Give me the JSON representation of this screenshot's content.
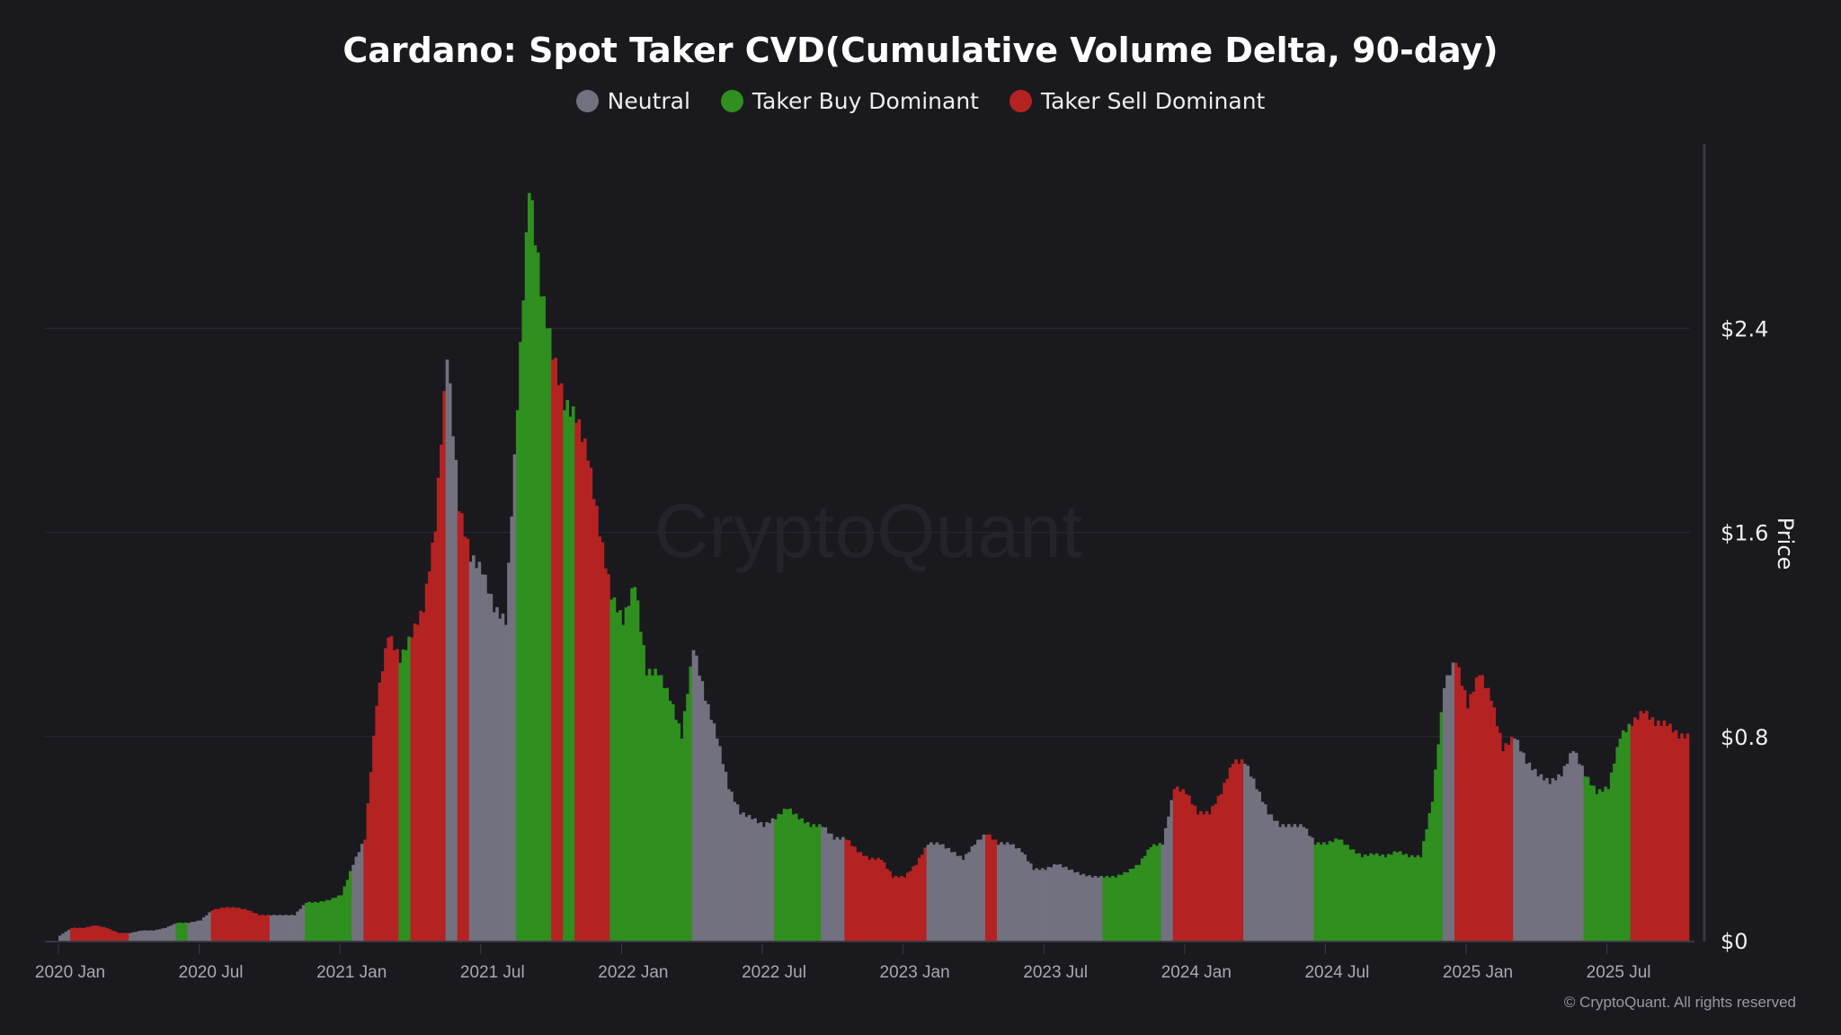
{
  "title": "Cardano: Spot Taker CVD(Cumulative Volume Delta, 90-day)",
  "legend": [
    {
      "key": "neutral",
      "label": "Neutral",
      "color": "#72717f"
    },
    {
      "key": "buy",
      "label": "Taker Buy Dominant",
      "color": "#2f8f1f"
    },
    {
      "key": "sell",
      "label": "Taker Sell Dominant",
      "color": "#b52222"
    }
  ],
  "watermark": "CryptoQuant",
  "copyright": "© CryptoQuant. All rights reserved",
  "chart_data": {
    "type": "bar",
    "title": "Cardano: Spot Taker CVD(Cumulative Volume Delta, 90-day)",
    "ylabel": "Price",
    "y_axis_side": "right",
    "ylim": [
      0,
      3.0
    ],
    "y_ticks": [
      "$0",
      "$0.8",
      "$1.6",
      "$2.4"
    ],
    "y_tick_values": [
      0,
      0.8,
      1.6,
      2.4
    ],
    "x_ticks": [
      "2020 Jan",
      "2020 Jul",
      "2021 Jan",
      "2021 Jul",
      "2022 Jan",
      "2022 Jul",
      "2023 Jan",
      "2023 Jul",
      "2024 Jan",
      "2024 Jul",
      "2025 Jan",
      "2025 Jul"
    ],
    "x_tick_dates": [
      "2020-01-01",
      "2020-07-01",
      "2021-01-01",
      "2021-07-01",
      "2022-01-01",
      "2022-07-01",
      "2023-01-01",
      "2023-07-01",
      "2024-01-01",
      "2024-07-01",
      "2025-01-01",
      "2025-07-01"
    ],
    "grid": "horizontal",
    "legend_position": "top",
    "point_fields": [
      "date",
      "price",
      "regime"
    ],
    "points": [
      [
        "2020-01-01",
        0.02,
        "neutral"
      ],
      [
        "2020-01-16",
        0.05,
        "sell"
      ],
      [
        "2020-02-01",
        0.05,
        "sell"
      ],
      [
        "2020-02-16",
        0.06,
        "sell"
      ],
      [
        "2020-03-01",
        0.05,
        "sell"
      ],
      [
        "2020-03-16",
        0.03,
        "sell"
      ],
      [
        "2020-04-01",
        0.03,
        "neutral"
      ],
      [
        "2020-04-16",
        0.04,
        "neutral"
      ],
      [
        "2020-05-01",
        0.04,
        "neutral"
      ],
      [
        "2020-05-16",
        0.05,
        "neutral"
      ],
      [
        "2020-06-01",
        0.07,
        "buy"
      ],
      [
        "2020-06-16",
        0.07,
        "neutral"
      ],
      [
        "2020-07-01",
        0.08,
        "neutral"
      ],
      [
        "2020-07-16",
        0.12,
        "sell"
      ],
      [
        "2020-08-01",
        0.13,
        "sell"
      ],
      [
        "2020-08-16",
        0.13,
        "sell"
      ],
      [
        "2020-09-01",
        0.12,
        "sell"
      ],
      [
        "2020-09-16",
        0.1,
        "sell"
      ],
      [
        "2020-10-01",
        0.1,
        "neutral"
      ],
      [
        "2020-10-16",
        0.1,
        "neutral"
      ],
      [
        "2020-11-01",
        0.1,
        "neutral"
      ],
      [
        "2020-11-16",
        0.15,
        "buy"
      ],
      [
        "2020-12-01",
        0.15,
        "buy"
      ],
      [
        "2020-12-16",
        0.16,
        "buy"
      ],
      [
        "2021-01-01",
        0.18,
        "buy"
      ],
      [
        "2021-01-16",
        0.3,
        "neutral"
      ],
      [
        "2021-02-01",
        0.4,
        "sell"
      ],
      [
        "2021-02-16",
        0.93,
        "sell"
      ],
      [
        "2021-03-01",
        1.2,
        "sell"
      ],
      [
        "2021-03-16",
        1.1,
        "buy"
      ],
      [
        "2021-04-01",
        1.2,
        "sell"
      ],
      [
        "2021-04-16",
        1.3,
        "sell"
      ],
      [
        "2021-05-01",
        1.62,
        "sell"
      ],
      [
        "2021-05-16",
        2.3,
        "neutral"
      ],
      [
        "2021-06-01",
        1.7,
        "sell"
      ],
      [
        "2021-06-16",
        1.5,
        "neutral"
      ],
      [
        "2021-07-01",
        1.45,
        "neutral"
      ],
      [
        "2021-07-16",
        1.3,
        "neutral"
      ],
      [
        "2021-08-01",
        1.25,
        "neutral"
      ],
      [
        "2021-08-16",
        2.1,
        "buy"
      ],
      [
        "2021-09-01",
        2.96,
        "buy"
      ],
      [
        "2021-09-16",
        2.55,
        "buy"
      ],
      [
        "2021-10-01",
        2.3,
        "sell"
      ],
      [
        "2021-10-16",
        2.1,
        "buy"
      ],
      [
        "2021-11-01",
        2.05,
        "sell"
      ],
      [
        "2021-11-16",
        1.9,
        "sell"
      ],
      [
        "2021-12-01",
        1.6,
        "sell"
      ],
      [
        "2021-12-16",
        1.35,
        "buy"
      ],
      [
        "2022-01-01",
        1.25,
        "buy"
      ],
      [
        "2022-01-16",
        1.4,
        "buy"
      ],
      [
        "2022-02-01",
        1.05,
        "buy"
      ],
      [
        "2022-02-16",
        1.05,
        "buy"
      ],
      [
        "2022-03-01",
        0.95,
        "buy"
      ],
      [
        "2022-03-16",
        0.8,
        "buy"
      ],
      [
        "2022-04-01",
        1.15,
        "neutral"
      ],
      [
        "2022-04-16",
        0.95,
        "neutral"
      ],
      [
        "2022-05-01",
        0.8,
        "neutral"
      ],
      [
        "2022-05-16",
        0.6,
        "neutral"
      ],
      [
        "2022-06-01",
        0.5,
        "neutral"
      ],
      [
        "2022-06-16",
        0.48,
        "neutral"
      ],
      [
        "2022-07-01",
        0.45,
        "neutral"
      ],
      [
        "2022-07-16",
        0.48,
        "buy"
      ],
      [
        "2022-08-01",
        0.52,
        "buy"
      ],
      [
        "2022-08-16",
        0.48,
        "buy"
      ],
      [
        "2022-09-01",
        0.45,
        "buy"
      ],
      [
        "2022-09-16",
        0.45,
        "neutral"
      ],
      [
        "2022-10-01",
        0.4,
        "neutral"
      ],
      [
        "2022-10-16",
        0.4,
        "sell"
      ],
      [
        "2022-11-01",
        0.35,
        "sell"
      ],
      [
        "2022-11-16",
        0.32,
        "sell"
      ],
      [
        "2022-12-01",
        0.32,
        "sell"
      ],
      [
        "2022-12-16",
        0.25,
        "sell"
      ],
      [
        "2023-01-01",
        0.25,
        "sell"
      ],
      [
        "2023-01-16",
        0.3,
        "sell"
      ],
      [
        "2023-02-01",
        0.38,
        "neutral"
      ],
      [
        "2023-02-16",
        0.38,
        "neutral"
      ],
      [
        "2023-03-01",
        0.35,
        "neutral"
      ],
      [
        "2023-03-16",
        0.32,
        "neutral"
      ],
      [
        "2023-04-01",
        0.38,
        "neutral"
      ],
      [
        "2023-04-16",
        0.42,
        "sell"
      ],
      [
        "2023-05-01",
        0.38,
        "neutral"
      ],
      [
        "2023-05-16",
        0.38,
        "neutral"
      ],
      [
        "2023-06-01",
        0.35,
        "neutral"
      ],
      [
        "2023-06-16",
        0.28,
        "neutral"
      ],
      [
        "2023-07-01",
        0.28,
        "neutral"
      ],
      [
        "2023-07-16",
        0.3,
        "neutral"
      ],
      [
        "2023-08-01",
        0.28,
        "neutral"
      ],
      [
        "2023-08-16",
        0.26,
        "neutral"
      ],
      [
        "2023-09-01",
        0.25,
        "neutral"
      ],
      [
        "2023-09-16",
        0.25,
        "buy"
      ],
      [
        "2023-10-01",
        0.25,
        "buy"
      ],
      [
        "2023-10-16",
        0.27,
        "buy"
      ],
      [
        "2023-11-01",
        0.3,
        "buy"
      ],
      [
        "2023-11-16",
        0.37,
        "buy"
      ],
      [
        "2023-12-01",
        0.38,
        "neutral"
      ],
      [
        "2023-12-16",
        0.6,
        "sell"
      ],
      [
        "2024-01-01",
        0.58,
        "sell"
      ],
      [
        "2024-01-16",
        0.5,
        "sell"
      ],
      [
        "2024-02-01",
        0.5,
        "sell"
      ],
      [
        "2024-02-16",
        0.58,
        "sell"
      ],
      [
        "2024-03-01",
        0.7,
        "sell"
      ],
      [
        "2024-03-16",
        0.7,
        "neutral"
      ],
      [
        "2024-04-01",
        0.6,
        "neutral"
      ],
      [
        "2024-04-16",
        0.5,
        "neutral"
      ],
      [
        "2024-05-01",
        0.45,
        "neutral"
      ],
      [
        "2024-05-16",
        0.45,
        "neutral"
      ],
      [
        "2024-06-01",
        0.45,
        "neutral"
      ],
      [
        "2024-06-16",
        0.38,
        "buy"
      ],
      [
        "2024-07-01",
        0.38,
        "buy"
      ],
      [
        "2024-07-16",
        0.4,
        "buy"
      ],
      [
        "2024-08-01",
        0.36,
        "buy"
      ],
      [
        "2024-08-16",
        0.33,
        "buy"
      ],
      [
        "2024-09-01",
        0.34,
        "buy"
      ],
      [
        "2024-09-16",
        0.33,
        "buy"
      ],
      [
        "2024-10-01",
        0.35,
        "buy"
      ],
      [
        "2024-10-16",
        0.33,
        "buy"
      ],
      [
        "2024-11-01",
        0.33,
        "buy"
      ],
      [
        "2024-11-16",
        0.55,
        "buy"
      ],
      [
        "2024-12-01",
        1.0,
        "neutral"
      ],
      [
        "2024-12-16",
        1.1,
        "sell"
      ],
      [
        "2025-01-01",
        0.92,
        "sell"
      ],
      [
        "2025-01-16",
        1.05,
        "sell"
      ],
      [
        "2025-02-01",
        0.95,
        "sell"
      ],
      [
        "2025-02-16",
        0.75,
        "sell"
      ],
      [
        "2025-03-01",
        0.8,
        "neutral"
      ],
      [
        "2025-03-16",
        0.7,
        "neutral"
      ],
      [
        "2025-04-01",
        0.65,
        "neutral"
      ],
      [
        "2025-04-16",
        0.62,
        "neutral"
      ],
      [
        "2025-05-01",
        0.65,
        "neutral"
      ],
      [
        "2025-05-16",
        0.75,
        "neutral"
      ],
      [
        "2025-06-01",
        0.65,
        "buy"
      ],
      [
        "2025-06-16",
        0.58,
        "buy"
      ],
      [
        "2025-07-01",
        0.6,
        "buy"
      ],
      [
        "2025-07-16",
        0.8,
        "buy"
      ],
      [
        "2025-08-01",
        0.85,
        "sell"
      ],
      [
        "2025-08-16",
        0.9,
        "sell"
      ],
      [
        "2025-09-01",
        0.85,
        "sell"
      ],
      [
        "2025-09-16",
        0.85,
        "sell"
      ],
      [
        "2025-10-01",
        0.8,
        "sell"
      ]
    ]
  }
}
